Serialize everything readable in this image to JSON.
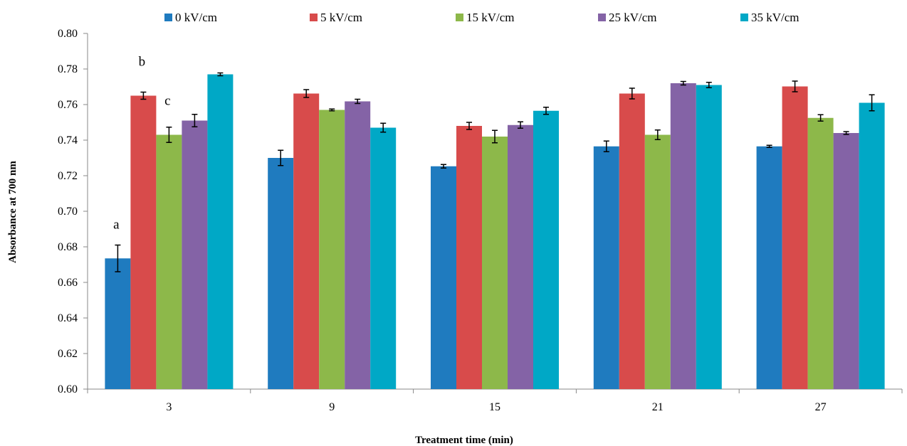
{
  "chart_data": {
    "type": "bar",
    "title": "",
    "xlabel": "Treatment time (min)",
    "ylabel": "Absorbance at 700 nm",
    "ylim": [
      0.6,
      0.8
    ],
    "yticks": [
      "0.60",
      "0.62",
      "0.64",
      "0.66",
      "0.68",
      "0.70",
      "0.72",
      "0.74",
      "0.76",
      "0.78",
      "0.80"
    ],
    "grid": false,
    "legend_position": "top",
    "categories": [
      "3",
      "9",
      "15",
      "21",
      "27"
    ],
    "series": [
      {
        "name": "0 kV/cm",
        "color": "#1f7bbf",
        "values": [
          0.6735,
          0.73,
          0.7253,
          0.7365,
          0.7365
        ],
        "errors": [
          0.0075,
          0.0043,
          0.001,
          0.003,
          0.0006
        ]
      },
      {
        "name": "5 kV/cm",
        "color": "#d84b4b",
        "values": [
          0.765,
          0.7662,
          0.748,
          0.7662,
          0.7702
        ],
        "errors": [
          0.002,
          0.0022,
          0.002,
          0.003,
          0.003
        ]
      },
      {
        "name": "15 kV/cm",
        "color": "#8db84a",
        "values": [
          0.743,
          0.757,
          0.742,
          0.743,
          0.7525
        ],
        "errors": [
          0.0043,
          0.0005,
          0.0035,
          0.0027,
          0.0018
        ]
      },
      {
        "name": "25 kV/cm",
        "color": "#8463a6",
        "values": [
          0.751,
          0.7618,
          0.7485,
          0.772,
          0.744
        ],
        "errors": [
          0.0035,
          0.0012,
          0.0018,
          0.001,
          0.0008
        ]
      },
      {
        "name": "35 kV/cm",
        "color": "#00a8c6",
        "values": [
          0.777,
          0.747,
          0.7565,
          0.771,
          0.761
        ],
        "errors": [
          0.0008,
          0.0025,
          0.002,
          0.0015,
          0.0045
        ]
      }
    ],
    "annotations": [
      {
        "text": "a",
        "category": "3",
        "series": "0 kV/cm"
      },
      {
        "text": "b",
        "category": "3",
        "series": "5 kV/cm"
      },
      {
        "text": "c",
        "category": "3",
        "series": "15 kV/cm"
      }
    ]
  }
}
